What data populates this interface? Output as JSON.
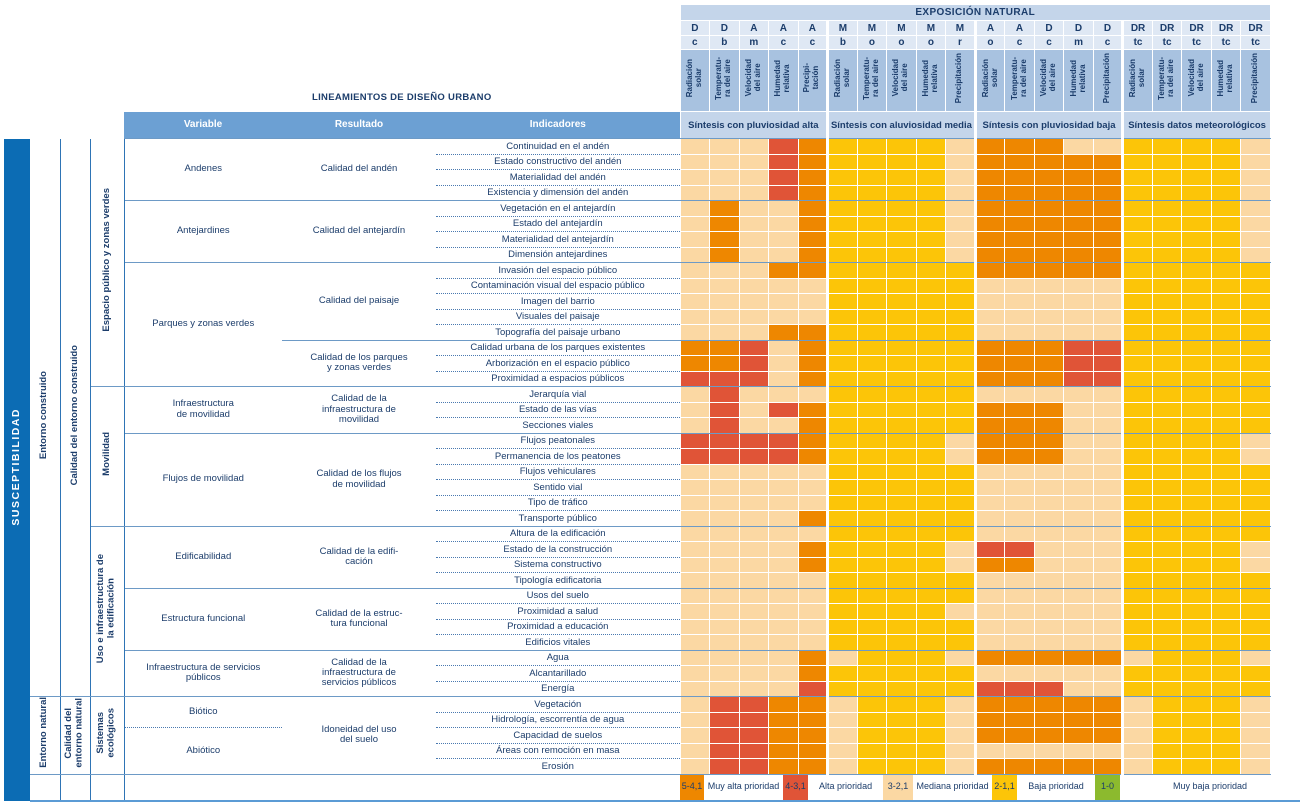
{
  "title": "LINEAMIENTOS DE DISEÑO URBANO",
  "exposicion_title": "EXPOSICIÓN NATURAL",
  "susceptibilidad": "SUSCEPTIBILIDAD",
  "header_cols": {
    "variable": "Variable",
    "resultado": "Resultado",
    "indicadores": "Indicadores"
  },
  "column_groups": [
    {
      "title": "Síntesis con pluviosidad alta",
      "cols": [
        {
          "t": "D",
          "b": "c",
          "lines": "Radiación\nsolar"
        },
        {
          "t": "D",
          "b": "b",
          "lines": "Temperatu-\nra del aire"
        },
        {
          "t": "A",
          "b": "m",
          "lines": "Velocidad\ndel aire"
        },
        {
          "t": "A",
          "b": "c",
          "lines": "Humedad\nrelativa"
        },
        {
          "t": "A",
          "b": "c",
          "lines": "Precipi-\ntación"
        }
      ]
    },
    {
      "title": "Síntesis con aluviosidad media",
      "cols": [
        {
          "t": "M",
          "b": "b",
          "lines": "Radiación\nsolar"
        },
        {
          "t": "M",
          "b": "o",
          "lines": "Temperatu-\nra del aire"
        },
        {
          "t": "M",
          "b": "o",
          "lines": "Velocidad\ndel aire"
        },
        {
          "t": "M",
          "b": "o",
          "lines": "Humedad\nrelativa"
        },
        {
          "t": "M",
          "b": "r",
          "lines": "Precipitación"
        }
      ]
    },
    {
      "title": "Síntesis con pluviosidad baja",
      "cols": [
        {
          "t": "A",
          "b": "o",
          "lines": "Radiación\nsolar"
        },
        {
          "t": "A",
          "b": "c",
          "lines": "Temperatu-\nra del aire"
        },
        {
          "t": "D",
          "b": "c",
          "lines": "Velocidad\ndel aire"
        },
        {
          "t": "D",
          "b": "m",
          "lines": "Humedad\nrelativa"
        },
        {
          "t": "D",
          "b": "c",
          "lines": "Precipitación"
        }
      ]
    },
    {
      "title": "Síntesis datos meteorológicos",
      "cols": [
        {
          "t": "DR",
          "b": "tc",
          "lines": "Radiación\nsolar"
        },
        {
          "t": "DR",
          "b": "tc",
          "lines": "Temperatu-\nra del aire"
        },
        {
          "t": "DR",
          "b": "tc",
          "lines": "Velocidad\ndel aire"
        },
        {
          "t": "DR",
          "b": "tc",
          "lines": "Humedad\nrelativa"
        },
        {
          "t": "DR",
          "b": "tc",
          "lines": "Precipitación"
        }
      ]
    }
  ],
  "left_table": {
    "entorno_spans": [
      {
        "label": "Entorno construido",
        "rows": 36
      },
      {
        "label": "Entorno natural",
        "rows": 5
      }
    ],
    "calidad_spans": [
      {
        "label": "Calidad del entorno construido",
        "rows": 36
      },
      {
        "label": "Calidad del\nentorno natural",
        "rows": 5
      }
    ],
    "categoria_spans": [
      {
        "label": "Espacio público y zonas verdes",
        "rows": 16
      },
      {
        "label": "Movilidad",
        "rows": 9
      },
      {
        "label": "Uso e infraestructura de\nla edificación",
        "rows": 11
      },
      {
        "label": "Sistemas\necológicos",
        "rows": 5
      }
    ],
    "variables": [
      {
        "label": "Andenes",
        "rows": 4
      },
      {
        "label": "Antejardines",
        "rows": 4
      },
      {
        "label": "Parques y zonas verdes",
        "rows": 8
      },
      {
        "label": "Infraestructura\nde movilidad",
        "rows": 3
      },
      {
        "label": "Flujos de movilidad",
        "rows": 6
      },
      {
        "label": "Edificabilidad",
        "rows": 4
      },
      {
        "label": "Estructura funcional",
        "rows": 4
      },
      {
        "label": "Infraestructura de servicios\npúblicos",
        "rows": 3
      },
      {
        "label": "Biótico",
        "rows": 2,
        "dotted_bottom": true
      },
      {
        "label": "Abiótico",
        "rows": 3
      }
    ],
    "resultados": [
      {
        "label": "Calidad del andén",
        "rows": 4
      },
      {
        "label": "Calidad del antejardín",
        "rows": 4
      },
      {
        "label": "Calidad del paisaje",
        "rows": 5
      },
      {
        "label": "Calidad de los parques\ny zonas verdes",
        "rows": 3
      },
      {
        "label": "Calidad de la\ninfraestructura de\nmovilidad",
        "rows": 3
      },
      {
        "label": "Calidad de los flujos\nde movilidad",
        "rows": 6
      },
      {
        "label": "Calidad de la edifi-\ncación",
        "rows": 4
      },
      {
        "label": "Calidad de la estruc-\ntura funcional",
        "rows": 4
      },
      {
        "label": "Calidad de la\ninfraestructura de\nservicios públicos",
        "rows": 3
      },
      {
        "label": "Idoneidad del uso\ndel suelo",
        "rows": 5
      }
    ],
    "solid_after": [
      4,
      8,
      13,
      16,
      19,
      25,
      29,
      33,
      36,
      41
    ]
  },
  "colors": {
    "orange": "#EE8700",
    "red": "#E05437",
    "peach": "#FBD8A3",
    "yellow": "#FCC508",
    "green": "#8CBA2E",
    "header_blue": "#C4D5EA",
    "band_blue": "#6CA0D3",
    "bar_blue": "#0C6CB4",
    "navy_text": "#1C3D6B"
  },
  "legend": {
    "items": [
      {
        "text": "5-4,1",
        "swatch": "orange"
      },
      {
        "text": "Muy alta prioridad"
      },
      {
        "text": "4-3,1",
        "swatch": "red"
      },
      {
        "text": "Alta prioridad"
      },
      {
        "text": "3-2,1",
        "swatch": "peach"
      },
      {
        "text": "Mediana prioridad"
      },
      {
        "text": "2-1,1",
        "swatch": "yellow"
      },
      {
        "text": "Baja prioridad"
      },
      {
        "text": "1-0",
        "swatch": "green"
      },
      {
        "text": "Muy baja prioridad"
      }
    ],
    "widths": [
      24,
      79,
      25,
      75,
      30,
      79,
      25,
      78,
      25,
      184
    ]
  },
  "chart_data": {
    "type": "heatmap",
    "title": "EXPOSICIÓN NATURAL",
    "value_classes": {
      "O": {
        "range": "5-4,1",
        "label": "Muy alta prioridad",
        "color": "#EE8700"
      },
      "R": {
        "range": "4-3,1",
        "label": "Alta prioridad",
        "color": "#E05437"
      },
      "P": {
        "range": "3-2,1",
        "label": "Mediana prioridad",
        "color": "#FBD8A3"
      },
      "Y": {
        "range": "2-1,1",
        "label": "Baja prioridad",
        "color": "#FCC508"
      },
      "G": {
        "range": "1-0",
        "label": "Muy baja prioridad",
        "color": "#8CBA2E"
      }
    },
    "rows": [
      {
        "indicator": "Continuidad en el andén",
        "values": "PPPRO YYYYP OOOPP YYYYP"
      },
      {
        "indicator": "Estado constructivo del andén",
        "values": "PPPRO YYYYP OOOOO YYYYP"
      },
      {
        "indicator": "Materialidad del andén",
        "values": "PPPRO YYYYP OOOOO YYYYP"
      },
      {
        "indicator": "Existencia y dimensión del andén",
        "values": "PPPRO YYYYP OOOOO YYYYP"
      },
      {
        "indicator": "Vegetación en el antejardín",
        "values": "POPPO YYYYP OOOOO YYYYP"
      },
      {
        "indicator": "Estado del antejardín",
        "values": "POPPO YYYYP OOOOO YYYYP"
      },
      {
        "indicator": "Materialidad del antejardín",
        "values": "POPPO YYYYP OOOOO YYYYP"
      },
      {
        "indicator": "Dimensión antejardines",
        "values": "POPPO YYYYP OOOOO YYYYP"
      },
      {
        "indicator": "Invasión del espacio público",
        "values": "PPPOO YYYYY OOOOO YYYYY"
      },
      {
        "indicator": "Contaminación visual del espacio público",
        "values": "PPPPP YYYYY PPPPP YYYYY"
      },
      {
        "indicator": "Imagen del barrio",
        "values": "PPPPP YYYYY PPPPP YYYYY"
      },
      {
        "indicator": "Visuales del paisaje",
        "values": "PPPPP YYYYY PPPPP YYYYY"
      },
      {
        "indicator": "Topografía del paisaje urbano",
        "values": "PPPOO YYYYY PPPPP YYYYY"
      },
      {
        "indicator": "Calidad urbana de los parques existentes",
        "values": "OORPO YYYYY OOORR YYYYY"
      },
      {
        "indicator": "Arborización en el espacio público",
        "values": "OORPO YYYYY OOORR YYYYY"
      },
      {
        "indicator": "Proximidad a espacios públicos",
        "values": "RRRPO YYYYY OOORR YYYYY"
      },
      {
        "indicator": "Jerarquía vial",
        "values": "PRPPP YYYYY PPPPP YYYYY"
      },
      {
        "indicator": "Estado de las vías",
        "values": "PRPRO YYYYY OOOPP YYYYY"
      },
      {
        "indicator": "Secciones viales",
        "values": "PRPPO YYYYY OOOPP YYYYY"
      },
      {
        "indicator": "Flujos peatonales",
        "values": "RRRRO YYYYP OOOPP YYYYP"
      },
      {
        "indicator": "Permanencia de los peatones",
        "values": "RRRRO YYYYP OOOPP YYYYP"
      },
      {
        "indicator": "Flujos vehiculares",
        "values": "PPPPP YYYYY PPPPP YYYYY"
      },
      {
        "indicator": "Sentido vial",
        "values": "PPPPP YYYYY PPPPP YYYYY"
      },
      {
        "indicator": "Tipo de tráfico",
        "values": "PPPPP YYYYY PPPPP YYYYY"
      },
      {
        "indicator": "Transporte público",
        "values": "PPPPO YYYYY PPPPP YYYYY"
      },
      {
        "indicator": "Altura de la edificación",
        "values": "PPPPP YYYYY PPPPP YYYYY"
      },
      {
        "indicator": "Estado de la construcción",
        "values": "PPPPO YYYYP RRPPP YYYYP"
      },
      {
        "indicator": "Sistema constructivo",
        "values": "PPPPO YYYYP OOPPP YYYYP"
      },
      {
        "indicator": "Tipología edificatoria",
        "values": "PPPPP YYYYY PPPPP YYYYY"
      },
      {
        "indicator": "Usos del suelo",
        "values": "PPPPP YYYYY PPPPP YYYYY"
      },
      {
        "indicator": "Proximidad a salud",
        "values": "PPPPP YYYYP PPPPP YYYYY"
      },
      {
        "indicator": "Proximidad a educación",
        "values": "PPPPP YYYYY PPPPP YYYYY"
      },
      {
        "indicator": "Edificios vitales",
        "values": "PPPPP YYYYY PPPPP YYYYY"
      },
      {
        "indicator": "Agua",
        "values": "PPPPO PYYYP OOOOO PYYYP"
      },
      {
        "indicator": "Alcantarillado",
        "values": "PPPPO YYYYY PPPPP YYYYY"
      },
      {
        "indicator": "Energía",
        "values": "PPPPR YYYYY RRRPP YYYYY"
      },
      {
        "indicator": "Vegetación",
        "values": "PRROO PYYYP OOOOO PYYYP"
      },
      {
        "indicator": "Hidrología, escorrentía de agua",
        "values": "PRROO PYYYP OOOOO PYYYP"
      },
      {
        "indicator": "Capacidad de suelos",
        "values": "PRROO PYYYP OOOOO PYYYP"
      },
      {
        "indicator": "Áreas con remoción en masa",
        "values": "PRROO PYYYP PPPPP PYYYP"
      },
      {
        "indicator": "Erosión",
        "values": "PRROO PYYYP OOOOO PYYYP"
      }
    ]
  }
}
